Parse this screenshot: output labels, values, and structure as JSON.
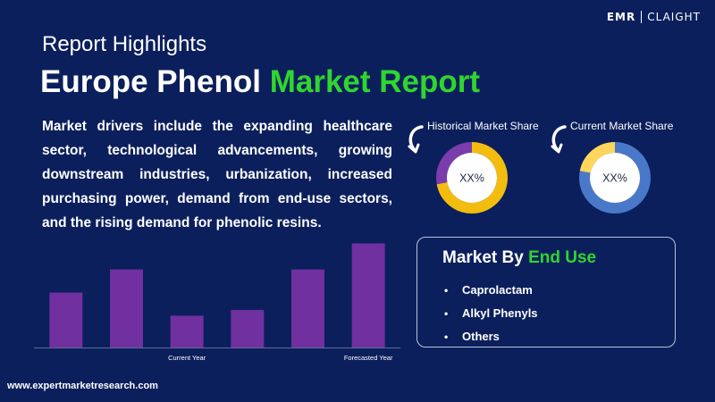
{
  "logo": {
    "left": "EMR",
    "right": "CLAIGHT"
  },
  "header": {
    "subtitle": "Report Highlights",
    "title_main": "Europe Phenol ",
    "title_accent": "Market Report"
  },
  "drivers_text": "Market drivers include the expanding healthcare sector, technological advancements, growing downstream industries, urbanization, increased purchasing power, demand from end-use sectors, and the rising demand for phenolic resins.",
  "chart_data": [
    {
      "type": "bar",
      "categories": [
        "",
        "",
        "Current Year",
        "",
        "",
        "Forecasted Year"
      ],
      "values": [
        1.9,
        2.7,
        1.1,
        1.3,
        2.7,
        3.6
      ],
      "ylim": [
        0,
        3.8
      ],
      "grid": false,
      "color": "#7030a0"
    },
    {
      "type": "pie",
      "title": "Historical Market Share",
      "center_label": "XX%",
      "slices": [
        {
          "value": 72,
          "color": "#f2bd0f"
        },
        {
          "value": 28,
          "color": "#7a3dab"
        }
      ]
    },
    {
      "type": "pie",
      "title": "Current Market Share",
      "center_label": "XX%",
      "slices": [
        {
          "value": 78,
          "color": "#4a78c9"
        },
        {
          "value": 22,
          "color": "#ffd65c"
        }
      ]
    }
  ],
  "end_use": {
    "title_main": "Market By ",
    "title_accent": "End Use",
    "items": [
      "Caprolactam",
      "Alkyl Phenyls",
      "Others"
    ]
  },
  "website": "www.expertmarketresearch.com",
  "colors": {
    "background": "#0b1f5c",
    "accent": "#2fd62f"
  }
}
